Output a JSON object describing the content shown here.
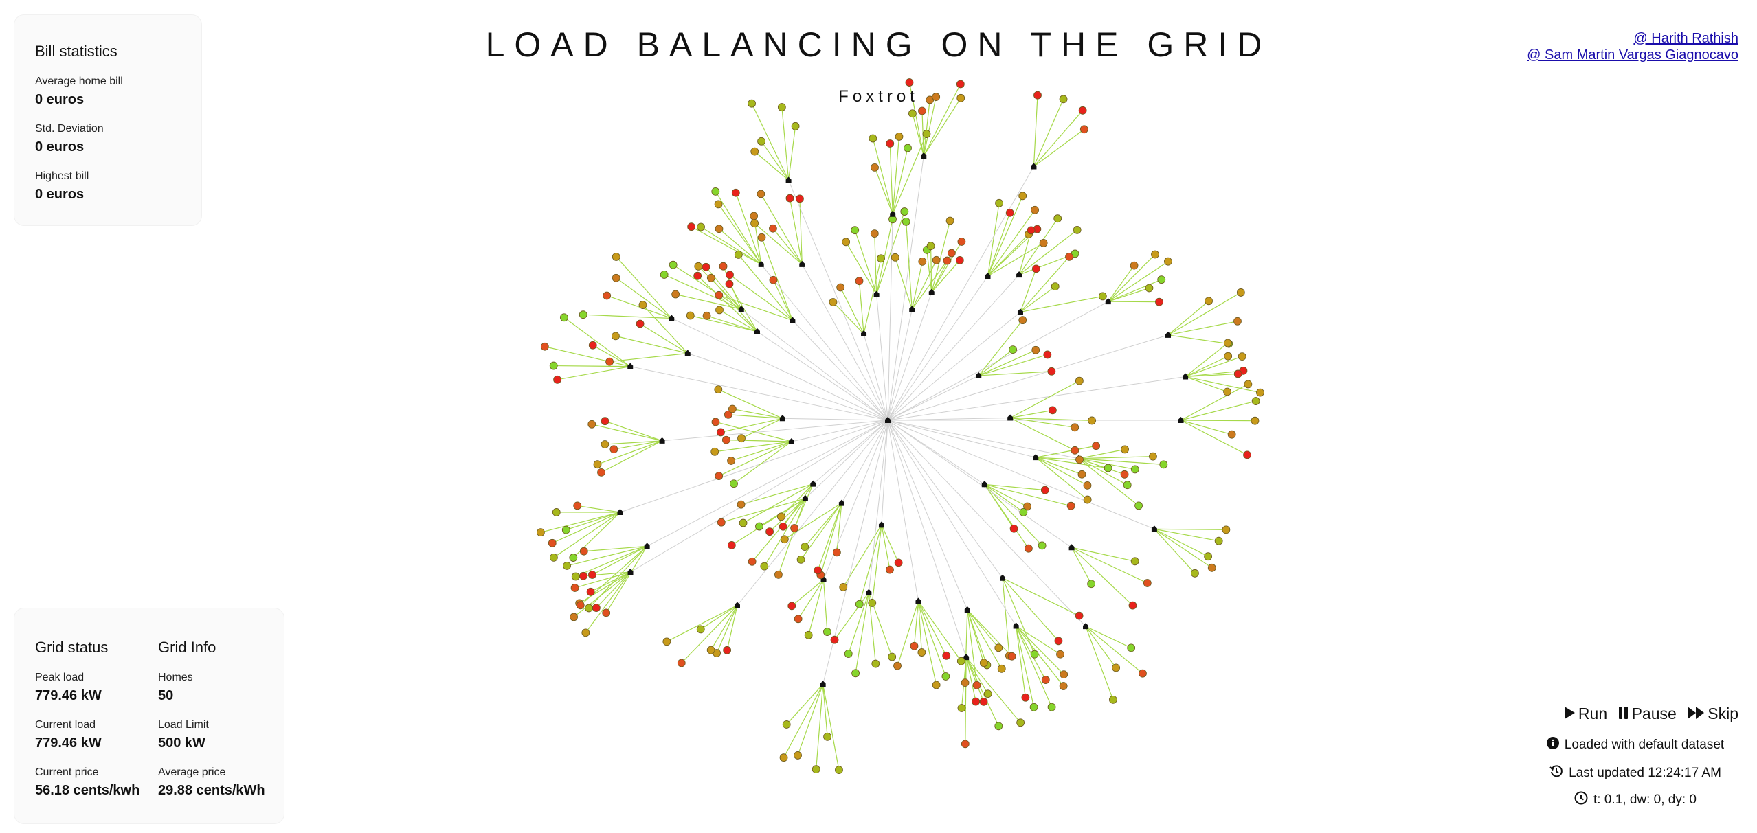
{
  "header": {
    "title": "LOAD BALANCING ON THE GRID",
    "subtitle": "Foxtrot"
  },
  "credits": [
    "@ Harith Rathish",
    "@ Sam Martin Vargas Giagnocavo"
  ],
  "bill_statistics": {
    "title": "Bill statistics",
    "stats": [
      {
        "label": "Average home bill",
        "value": "0 euros"
      },
      {
        "label": "Std. Deviation",
        "value": "0 euros"
      },
      {
        "label": "Highest bill",
        "value": "0 euros"
      }
    ]
  },
  "grid_status": {
    "title": "Grid status",
    "stats": [
      {
        "label": "Peak load",
        "value": "779.46 kW"
      },
      {
        "label": "Current load",
        "value": "779.46 kW"
      },
      {
        "label": "Current price",
        "value": "56.18 cents/kwh"
      }
    ]
  },
  "grid_info": {
    "title": "Grid Info",
    "stats": [
      {
        "label": "Homes",
        "value": "50"
      },
      {
        "label": "Load Limit",
        "value": "500 kW"
      },
      {
        "label": "Average price",
        "value": "29.88 cents/kWh"
      }
    ]
  },
  "controls": {
    "run_label": "Run",
    "pause_label": "Pause",
    "skip_label": "Skip",
    "run_icon": "play-icon",
    "pause_icon": "pause-icon",
    "skip_icon": "fast-forward-icon"
  },
  "status": {
    "loaded": "Loaded with default dataset",
    "updated": "Last updated 12:24:17 AM",
    "params": "t: 0.1, dw: 0, dy: 0",
    "loaded_icon": "info-icon",
    "updated_icon": "history-icon",
    "params_icon": "clock-icon"
  },
  "graph": {
    "homes": 50,
    "edge_color_center": "#d0d0d0",
    "edge_color_device": "#a6d94a",
    "device_colors": [
      "#e8221c",
      "#e0501f",
      "#cc7a1e",
      "#c79a1a",
      "#a7b81c",
      "#86d52c"
    ]
  }
}
